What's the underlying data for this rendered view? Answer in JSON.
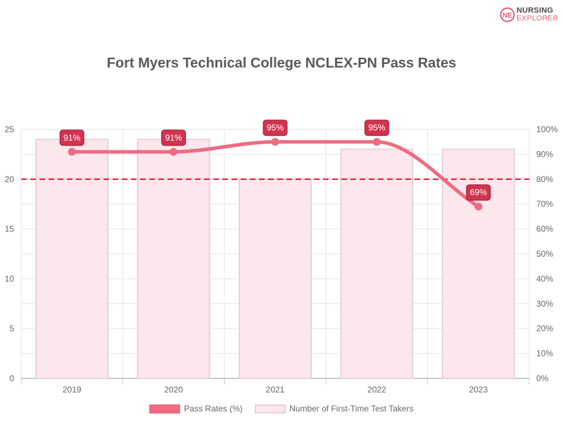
{
  "logo": {
    "line1": "NURSING",
    "line2": "EXPLORER",
    "mark": "NE"
  },
  "title": "Fort Myers Technical College NCLEX-PN Pass Rates",
  "colors": {
    "line": "#ee6b82",
    "bar_fill": "#fbe7ec",
    "bar_stroke": "#e8d3d8",
    "label_bg": "#d3334f",
    "label_border": "#9c1b32",
    "threshold": "#e8131e",
    "grid": "#e6e6e6",
    "axis_text": "#666666"
  },
  "chart_data": {
    "type": "bar",
    "title": "Fort Myers Technical College NCLEX-PN Pass Rates",
    "categories": [
      "2019",
      "2020",
      "2021",
      "2022",
      "2023"
    ],
    "series": [
      {
        "name": "Pass Rates (%)",
        "type": "line",
        "axis": "right",
        "values": [
          91,
          91,
          95,
          95,
          69
        ]
      },
      {
        "name": "Number of First-Time Test Takers",
        "type": "bar",
        "axis": "left",
        "values": [
          24,
          24,
          20,
          23,
          23
        ]
      }
    ],
    "data_labels": [
      "91%",
      "91%",
      "95%",
      "95%",
      "69%"
    ],
    "left_axis": {
      "ylim": [
        0,
        25
      ],
      "ticks": [
        "0",
        "5",
        "10",
        "15",
        "20",
        "25"
      ]
    },
    "right_axis": {
      "ylim": [
        0,
        100
      ],
      "ticks": [
        "0%",
        "10%",
        "20%",
        "30%",
        "40%",
        "50%",
        "60%",
        "70%",
        "80%",
        "90%",
        "100%"
      ]
    },
    "threshold": {
      "value": 80,
      "axis": "right",
      "style": "dashed"
    },
    "grid": true,
    "legend_position": "bottom"
  }
}
